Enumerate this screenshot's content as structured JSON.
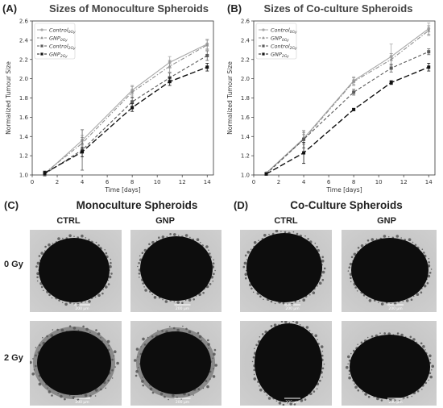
{
  "panels": {
    "a_label": "(A)",
    "b_label": "(B)",
    "c_label": "(C)",
    "d_label": "(D)"
  },
  "micrographs": {
    "mono_title": "Monoculture Spheroids",
    "co_title": "Co-Culture Spheroids",
    "col_ctrl": "CTRL",
    "col_gnp": "GNP",
    "row_0gy": "0 Gy",
    "row_2gy": "2 Gy",
    "scale_bar": "200 µm",
    "colors": {
      "background": "#cfcfcf",
      "spheroid": "#0d0d0d",
      "halo": "#3a3a3a"
    }
  },
  "chart_data": [
    {
      "type": "line",
      "title": "Sizes of Monoculture Spheroids",
      "xlabel": "Time [days]",
      "ylabel": "Normalized Tumour Size",
      "xlim": [
        0,
        14.5
      ],
      "ylim": [
        1.0,
        2.6
      ],
      "xticks": [
        0,
        2,
        4,
        6,
        8,
        10,
        12,
        14
      ],
      "yticks": [
        1.0,
        1.2,
        1.4,
        1.6,
        1.8,
        2.0,
        2.2,
        2.4,
        2.6
      ],
      "grid": false,
      "legend_position": "top-left",
      "x": [
        1,
        4,
        8,
        11,
        14
      ],
      "series": [
        {
          "name": "Control",
          "sub": "0Gy",
          "color": "#a8a8a8",
          "dash": "solid",
          "marker": "circle",
          "values": [
            1.01,
            1.36,
            1.88,
            2.17,
            2.36
          ],
          "errors": [
            0.02,
            0.05,
            0.05,
            0.06,
            0.05
          ]
        },
        {
          "name": "GNP",
          "sub": "0Gy",
          "color": "#909090",
          "dash": "dashdot",
          "marker": "triangle",
          "values": [
            1.02,
            1.33,
            1.86,
            2.13,
            2.35
          ],
          "errors": [
            0.02,
            0.06,
            0.06,
            0.06,
            0.05
          ]
        },
        {
          "name": "Control",
          "sub": "2Gy",
          "color": "#5a5a5a",
          "dash": "dashed",
          "marker": "square",
          "values": [
            1.01,
            1.26,
            1.76,
            2.01,
            2.24
          ],
          "errors": [
            0.02,
            0.21,
            0.05,
            0.05,
            0.05
          ]
        },
        {
          "name": "GNP",
          "sub": "2Gy",
          "color": "#111111",
          "dash": "longdash",
          "marker": "square",
          "values": [
            1.02,
            1.24,
            1.7,
            1.97,
            2.12
          ],
          "errors": [
            0.02,
            0.05,
            0.04,
            0.04,
            0.04
          ]
        }
      ]
    },
    {
      "type": "line",
      "title": "Sizes of Co-culture Spheroids",
      "xlabel": "Time [days]",
      "ylabel": "Normalized Tumour Size",
      "xlim": [
        0,
        14.5
      ],
      "ylim": [
        1.0,
        2.6
      ],
      "xticks": [
        0,
        2,
        4,
        6,
        8,
        10,
        12,
        14
      ],
      "yticks": [
        1.0,
        1.2,
        1.4,
        1.6,
        1.8,
        2.0,
        2.2,
        2.4,
        2.6
      ],
      "grid": false,
      "legend_position": "top-left",
      "x": [
        1,
        4,
        8,
        11,
        14
      ],
      "series": [
        {
          "name": "Control",
          "sub": "0Gy",
          "color": "#a8a8a8",
          "dash": "solid",
          "marker": "circle",
          "values": [
            1.02,
            1.38,
            1.98,
            2.23,
            2.52
          ],
          "errors": [
            0.01,
            0.06,
            0.04,
            0.13,
            0.06
          ]
        },
        {
          "name": "GNP",
          "sub": "0Gy",
          "color": "#909090",
          "dash": "dashdot",
          "marker": "triangle",
          "values": [
            1.02,
            1.37,
            1.97,
            2.2,
            2.5
          ],
          "errors": [
            0.01,
            0.05,
            0.04,
            0.06,
            0.05
          ]
        },
        {
          "name": "Control",
          "sub": "2Gy",
          "color": "#5a5a5a",
          "dash": "dashed",
          "marker": "square",
          "values": [
            1.01,
            1.37,
            1.86,
            2.11,
            2.28
          ],
          "errors": [
            0.01,
            0.09,
            0.03,
            0.04,
            0.03
          ]
        },
        {
          "name": "GNP",
          "sub": "2Gy",
          "color": "#111111",
          "dash": "longdash",
          "marker": "square",
          "values": [
            1.01,
            1.23,
            1.68,
            1.96,
            2.12
          ],
          "errors": [
            0.01,
            0.11,
            0.01,
            0.02,
            0.04
          ]
        }
      ]
    }
  ]
}
